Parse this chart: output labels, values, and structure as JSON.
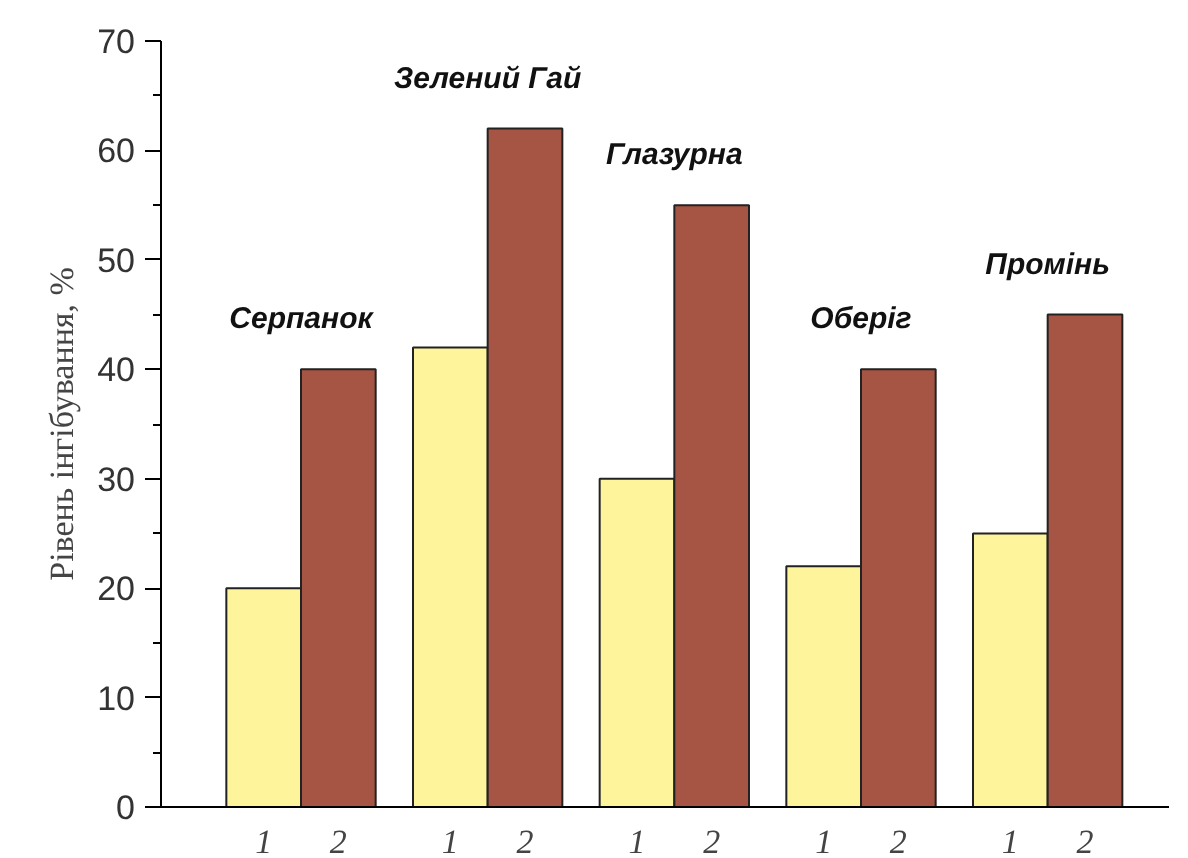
{
  "chart_data": {
    "type": "bar",
    "ylabel": "Рівень інгібування, %",
    "categories": [
      "1",
      "2",
      "1",
      "2",
      "1",
      "2",
      "1",
      "2",
      "1",
      "2"
    ],
    "values": [
      20,
      40,
      42,
      62,
      30,
      55,
      22,
      40,
      25,
      45
    ],
    "colors": [
      "#fdf49c",
      "#a65443",
      "#fdf49c",
      "#a65443",
      "#fdf49c",
      "#a65443",
      "#fdf49c",
      "#a65443",
      "#fdf49c",
      "#a65443"
    ],
    "annotations": [
      "Серпанок",
      "Зелений Гай",
      "Глазурна",
      "Оберіг",
      "Промінь"
    ],
    "ylim": [
      0,
      70
    ],
    "yticks": [
      0,
      10,
      20,
      30,
      40,
      50,
      60,
      70
    ],
    "grid": false
  }
}
